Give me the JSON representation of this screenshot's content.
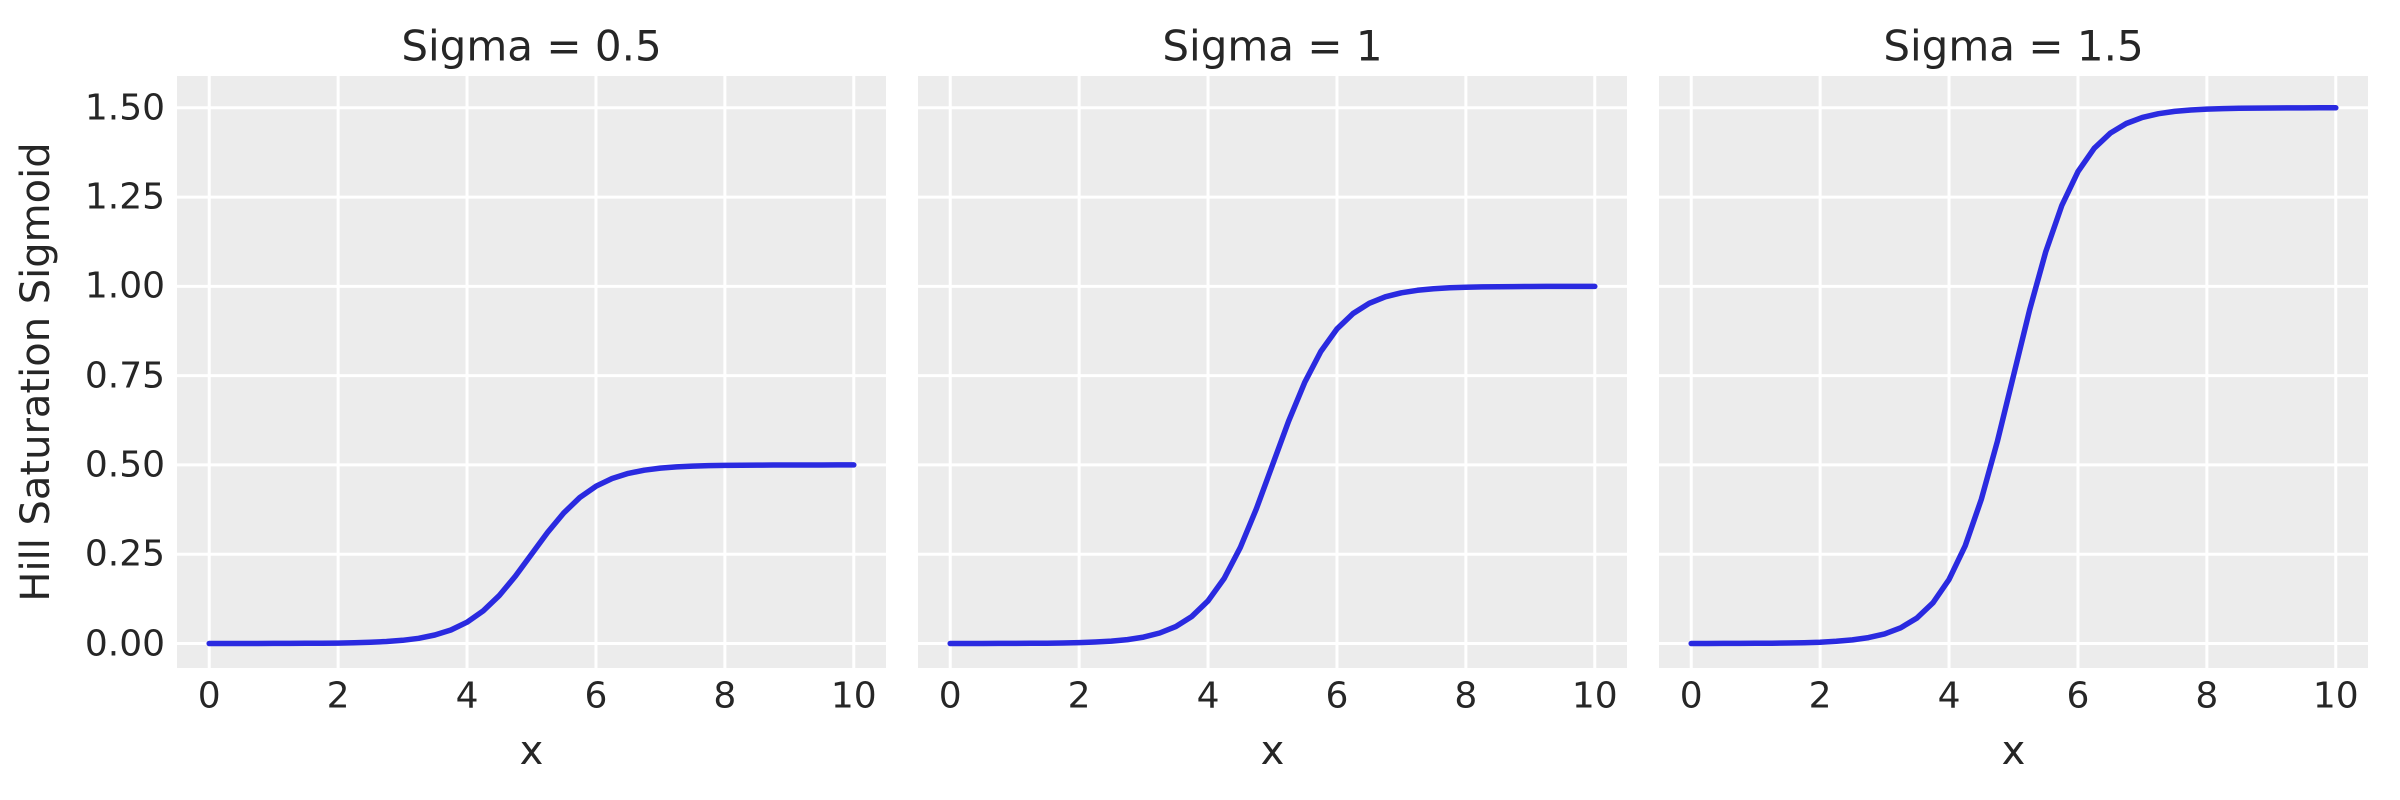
{
  "figure": {
    "ylabel": "Hill Saturation Sigmoid",
    "background_color": "#ffffff",
    "panel_background_color": "#ececec",
    "grid_color": "#ffffff",
    "line_color": "#2a2ae0",
    "text_color": "#262626"
  },
  "chart_data": [
    {
      "type": "line",
      "title": "Sigma = 0.5",
      "xlabel": "x",
      "ylabel": "Hill Saturation Sigmoid",
      "sigma": 0.5,
      "xlim": [
        -0.5,
        10.5
      ],
      "ylim": [
        -0.0686,
        1.589
      ],
      "grid": true,
      "legend": "none",
      "xticks": [
        0,
        2,
        4,
        6,
        8,
        10
      ],
      "xtick_labels": [
        "0",
        "2",
        "4",
        "6",
        "8",
        "10"
      ],
      "yticks": [
        0,
        0.25,
        0.5,
        0.75,
        1.0,
        1.25,
        1.5
      ],
      "ytick_labels": [
        "0.00",
        "0.25",
        "0.50",
        "0.75",
        "1.00",
        "1.25",
        "1.50"
      ],
      "x": [
        0,
        0.25,
        0.5,
        0.75,
        1,
        1.25,
        1.5,
        1.75,
        2,
        2.25,
        2.5,
        2.75,
        3,
        3.25,
        3.5,
        3.75,
        4,
        4.25,
        4.5,
        4.75,
        5,
        5.25,
        5.5,
        5.75,
        6,
        6.25,
        6.5,
        6.75,
        7,
        7.25,
        7.5,
        7.75,
        8,
        8.25,
        8.5,
        8.75,
        9,
        9.25,
        9.5,
        9.75,
        10
      ],
      "y": [
        0.0,
        0.0,
        0.0001,
        0.0001,
        0.0002,
        0.0003,
        0.0005,
        0.0008,
        0.0012,
        0.002,
        0.0033,
        0.0055,
        0.009,
        0.0147,
        0.0237,
        0.0379,
        0.0596,
        0.0912,
        0.1345,
        0.1888,
        0.25,
        0.3112,
        0.3655,
        0.4088,
        0.4404,
        0.4621,
        0.4763,
        0.4853,
        0.491,
        0.4945,
        0.4967,
        0.498,
        0.4988,
        0.4992,
        0.4995,
        0.4997,
        0.4998,
        0.4999,
        0.4999,
        0.5,
        0.5
      ]
    },
    {
      "type": "line",
      "title": "Sigma = 1",
      "xlabel": "x",
      "ylabel": "Hill Saturation Sigmoid",
      "sigma": 1.0,
      "xlim": [
        -0.5,
        10.5
      ],
      "ylim": [
        -0.0686,
        1.589
      ],
      "grid": true,
      "legend": "none",
      "xticks": [
        0,
        2,
        4,
        6,
        8,
        10
      ],
      "xtick_labels": [
        "0",
        "2",
        "4",
        "6",
        "8",
        "10"
      ],
      "yticks": [
        0,
        0.25,
        0.5,
        0.75,
        1.0,
        1.25,
        1.5
      ],
      "ytick_labels": [
        "0.00",
        "0.25",
        "0.50",
        "0.75",
        "1.00",
        "1.25",
        "1.50"
      ],
      "x": [
        0,
        0.25,
        0.5,
        0.75,
        1,
        1.25,
        1.5,
        1.75,
        2,
        2.25,
        2.5,
        2.75,
        3,
        3.25,
        3.5,
        3.75,
        4,
        4.25,
        4.5,
        4.75,
        5,
        5.25,
        5.5,
        5.75,
        6,
        6.25,
        6.5,
        6.75,
        7,
        7.25,
        7.5,
        7.75,
        8,
        8.25,
        8.5,
        8.75,
        9,
        9.25,
        9.5,
        9.75,
        10
      ],
      "y": [
        0.0,
        0.0001,
        0.0001,
        0.0002,
        0.0003,
        0.0006,
        0.0009,
        0.0015,
        0.0025,
        0.0041,
        0.0067,
        0.011,
        0.018,
        0.0293,
        0.0474,
        0.0759,
        0.1192,
        0.1824,
        0.2689,
        0.3775,
        0.5,
        0.6225,
        0.7311,
        0.8176,
        0.8808,
        0.9241,
        0.9526,
        0.9707,
        0.982,
        0.989,
        0.9933,
        0.9959,
        0.9975,
        0.9985,
        0.9991,
        0.9994,
        0.9997,
        0.9998,
        0.9999,
        0.9999,
        1.0
      ]
    },
    {
      "type": "line",
      "title": "Sigma = 1.5",
      "xlabel": "x",
      "ylabel": "Hill Saturation Sigmoid",
      "sigma": 1.5,
      "xlim": [
        -0.5,
        10.5
      ],
      "ylim": [
        -0.0686,
        1.589
      ],
      "grid": true,
      "legend": "none",
      "xticks": [
        0,
        2,
        4,
        6,
        8,
        10
      ],
      "xtick_labels": [
        "0",
        "2",
        "4",
        "6",
        "8",
        "10"
      ],
      "yticks": [
        0,
        0.25,
        0.5,
        0.75,
        1.0,
        1.25,
        1.5
      ],
      "ytick_labels": [
        "0.00",
        "0.25",
        "0.50",
        "0.75",
        "1.00",
        "1.25",
        "1.50"
      ],
      "x": [
        0,
        0.25,
        0.5,
        0.75,
        1,
        1.25,
        1.5,
        1.75,
        2,
        2.25,
        2.5,
        2.75,
        3,
        3.25,
        3.5,
        3.75,
        4,
        4.25,
        4.5,
        4.75,
        5,
        5.25,
        5.5,
        5.75,
        6,
        6.25,
        6.5,
        6.75,
        7,
        7.25,
        7.5,
        7.75,
        8,
        8.25,
        8.5,
        8.75,
        9,
        9.25,
        9.5,
        9.75,
        10
      ],
      "y": [
        0.0001,
        0.0001,
        0.0002,
        0.0003,
        0.0005,
        0.0008,
        0.0014,
        0.0023,
        0.0037,
        0.0061,
        0.01,
        0.0165,
        0.027,
        0.044,
        0.0711,
        0.1138,
        0.1788,
        0.2736,
        0.4034,
        0.5663,
        0.75,
        0.9337,
        1.0966,
        1.2264,
        1.3212,
        1.3862,
        1.4289,
        1.456,
        1.473,
        1.4835,
        1.49,
        1.4939,
        1.4963,
        1.4977,
        1.4986,
        1.4992,
        1.4995,
        1.4997,
        1.4998,
        1.4999,
        1.4999
      ]
    }
  ]
}
